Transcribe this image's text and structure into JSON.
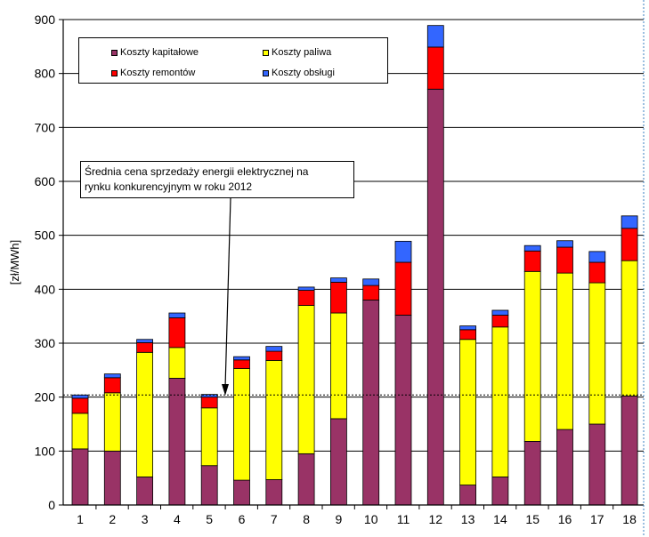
{
  "chart_data": {
    "type": "bar",
    "stacked": true,
    "title": "",
    "xlabel": "",
    "ylabel": "[zł/MWh]",
    "ylim": [
      0,
      900
    ],
    "yticks": [
      "0",
      "100",
      "200",
      "300",
      "400",
      "500",
      "600",
      "700",
      "800",
      "900"
    ],
    "grid": true,
    "legend_position": "top-left",
    "categories": [
      "1",
      "2",
      "3",
      "4",
      "5",
      "6",
      "7",
      "8",
      "9",
      "10",
      "11",
      "12",
      "13",
      "14",
      "15",
      "16",
      "17",
      "18"
    ],
    "series": [
      {
        "name": "Koszty kapitałowe",
        "color": "#993366",
        "values": [
          104,
          100,
          52,
          235,
          73,
          46,
          47,
          95,
          160,
          380,
          352,
          771,
          37,
          52,
          118,
          140,
          150,
          202
        ]
      },
      {
        "name": "Koszty paliwa",
        "color": "#ffff00",
        "values": [
          66,
          108,
          231,
          57,
          107,
          207,
          221,
          275,
          196,
          0,
          0,
          0,
          270,
          278,
          315,
          290,
          262,
          251
        ]
      },
      {
        "name": "Koszty remontów",
        "color": "#ff0000",
        "values": [
          28,
          28,
          18,
          55,
          20,
          16,
          17,
          28,
          57,
          27,
          98,
          78,
          18,
          22,
          38,
          48,
          38,
          60
        ]
      },
      {
        "name": "Koszty obsługi",
        "color": "#3366ff",
        "values": [
          6,
          7,
          6,
          9,
          5,
          6,
          9,
          6,
          8,
          12,
          39,
          40,
          7,
          9,
          10,
          12,
          20,
          23
        ]
      }
    ],
    "reference_line": {
      "value": 204
    },
    "annotation": {
      "line1": "Średnia cena sprzedaży energii elektrycznej na",
      "line2": "rynku konkurencyjnym w roku 2012"
    }
  },
  "colors": {
    "outline": "#000000",
    "gridline": "#000000",
    "right_edge_dash": "#3a7fc0"
  }
}
